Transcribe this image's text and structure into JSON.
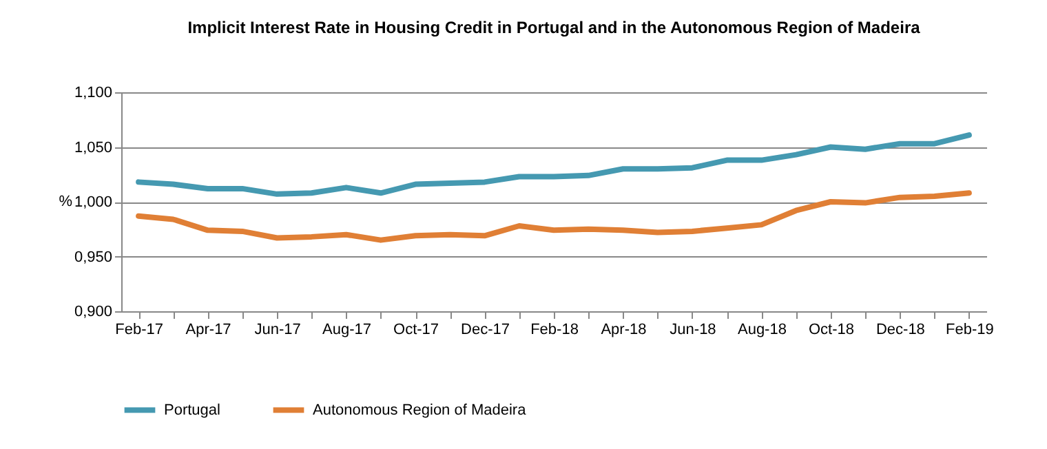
{
  "chart_data": {
    "type": "line",
    "title": "Implicit Interest Rate in Housing Credit in Portugal and in the Autonomous Region of Madeira",
    "ylabel": "%",
    "categories": [
      "Feb-17",
      null,
      "Apr-17",
      null,
      "Jun-17",
      null,
      "Aug-17",
      null,
      "Oct-17",
      null,
      "Dec-17",
      null,
      "Feb-18",
      null,
      "Apr-18",
      null,
      "Jun-18",
      null,
      "Aug-18",
      null,
      "Oct-18",
      null,
      "Dec-18",
      null,
      "Feb-19"
    ],
    "series": [
      {
        "name": "Portugal",
        "color": "#4599b1",
        "values": [
          1.018,
          1.016,
          1.012,
          1.012,
          1.007,
          1.008,
          1.013,
          1.008,
          1.016,
          1.017,
          1.018,
          1.023,
          1.023,
          1.024,
          1.03,
          1.03,
          1.031,
          1.038,
          1.038,
          1.043,
          1.05,
          1.048,
          1.053,
          1.053,
          1.061
        ]
      },
      {
        "name": "Autonomous Region of Madeira",
        "color": "#e07f35",
        "values": [
          0.987,
          0.984,
          0.974,
          0.973,
          0.967,
          0.968,
          0.97,
          0.965,
          0.969,
          0.97,
          0.969,
          0.978,
          0.974,
          0.975,
          0.974,
          0.972,
          0.973,
          0.976,
          0.979,
          0.992,
          1.0,
          0.999,
          1.004,
          1.005,
          1.008
        ]
      }
    ],
    "ylim": [
      0.9,
      1.1
    ],
    "yticks": [
      {
        "value": 0.9,
        "label": "0,900"
      },
      {
        "value": 0.95,
        "label": "0,950"
      },
      {
        "value": 1.0,
        "label": "1,000"
      },
      {
        "value": 1.05,
        "label": "1,050"
      },
      {
        "value": 1.1,
        "label": "1,100"
      }
    ],
    "grid": "y",
    "legend": "bottom",
    "line_style": "solid",
    "marker": "none"
  }
}
